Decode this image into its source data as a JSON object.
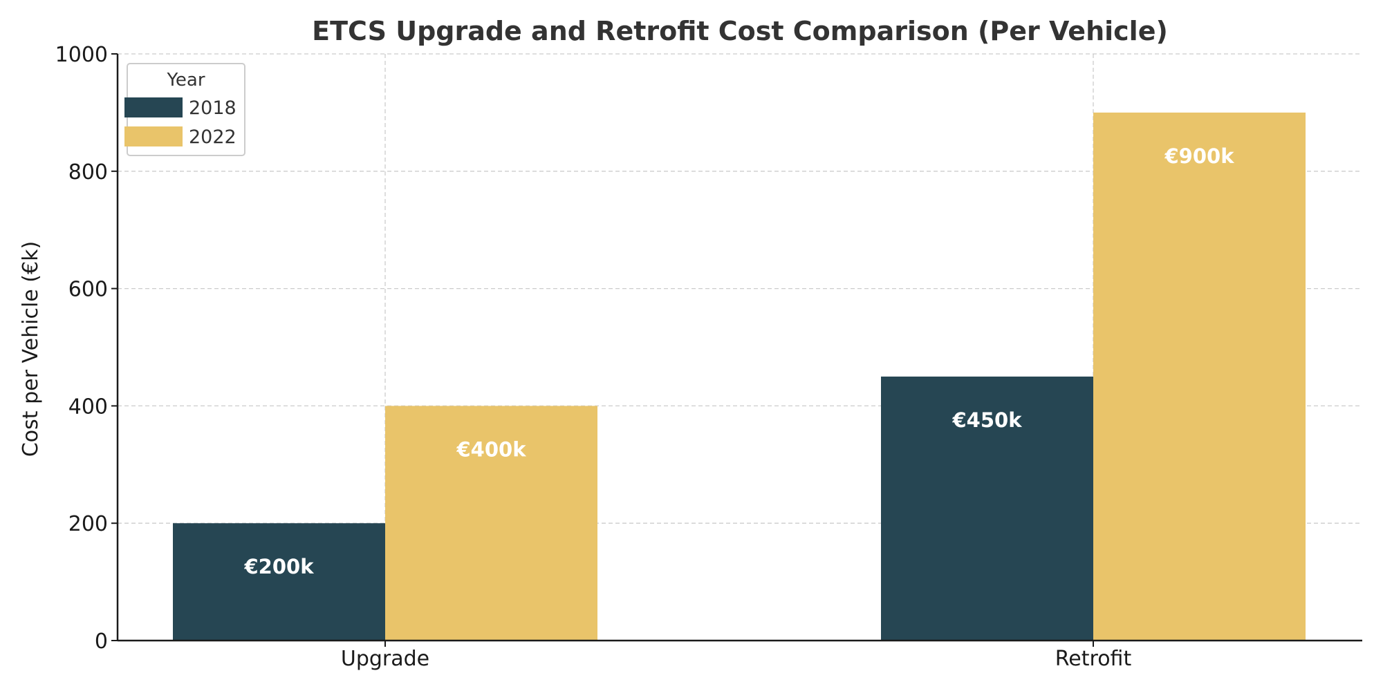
{
  "chart_data": {
    "type": "bar",
    "title": "ETCS Upgrade and Retrofit Cost Comparison (Per Vehicle)",
    "xlabel": "",
    "ylabel": "Cost per Vehicle (€k)",
    "categories": [
      "Upgrade",
      "Retrofit"
    ],
    "series": [
      {
        "name": "2018",
        "values": [
          200,
          450
        ],
        "color": "#264653",
        "labels": [
          "€200k",
          "€450k"
        ]
      },
      {
        "name": "2022",
        "values": [
          400,
          900
        ],
        "color": "#e9c46a",
        "labels": [
          "€400k",
          "€900k"
        ]
      }
    ],
    "ylim": [
      0,
      1000
    ],
    "yticks": [
      0,
      200,
      400,
      600,
      800,
      1000
    ],
    "ytick_labels": [
      "0",
      "200",
      "400",
      "600",
      "800",
      "1000"
    ],
    "grid": true,
    "legend": {
      "title": "Year",
      "placement": "top-left"
    }
  }
}
